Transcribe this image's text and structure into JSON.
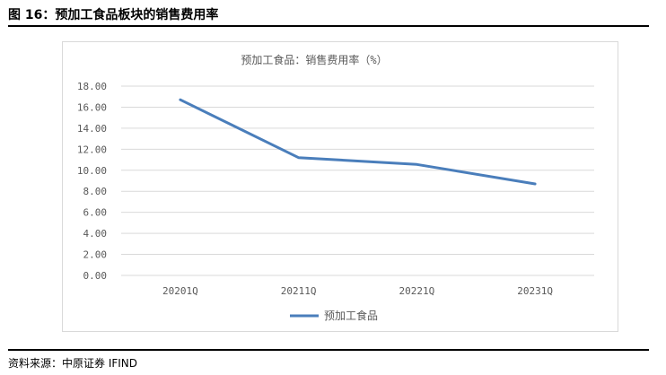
{
  "figure": {
    "label": "图 16：预加工食品板块的销售费用率",
    "source": "资料来源：中原证券 IFIND"
  },
  "chart_data": {
    "type": "line",
    "title": "预加工食品：销售费用率（%）",
    "categories": [
      "20201Q",
      "20211Q",
      "20221Q",
      "20231Q"
    ],
    "series": [
      {
        "name": "预加工食品",
        "values": [
          16.7,
          11.2,
          10.55,
          8.7
        ],
        "color": "#4a7ebb"
      }
    ],
    "ylim": [
      0,
      18
    ],
    "ytick_step": 2,
    "ytick_labels": [
      "0.00",
      "2.00",
      "4.00",
      "6.00",
      "8.00",
      "10.00",
      "12.00",
      "14.00",
      "16.00",
      "18.00"
    ],
    "grid": true,
    "legend_position": "bottom"
  }
}
